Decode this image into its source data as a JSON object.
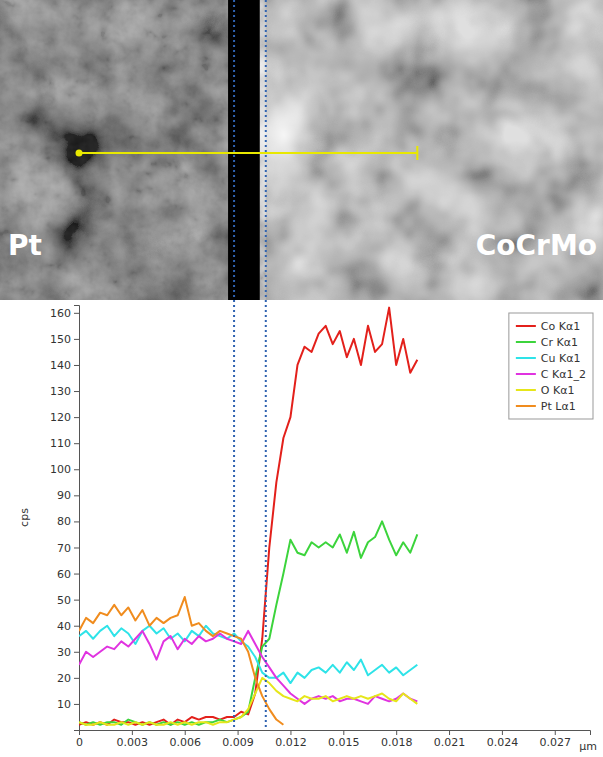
{
  "micrograph": {
    "left_label": "Pt",
    "right_label": "CoCrMo"
  },
  "chart_data": {
    "type": "line",
    "x_label": "µm",
    "y_label": "cps",
    "xlim": [
      0,
      0.029
    ],
    "xticks": [
      0,
      0.003,
      0.006,
      0.009,
      0.012,
      0.015,
      0.018,
      0.021,
      0.024,
      0.027
    ],
    "ylim": [
      0,
      163
    ],
    "yticks": [
      10,
      20,
      30,
      40,
      50,
      60,
      70,
      80,
      90,
      100,
      110,
      120,
      130,
      140,
      150,
      160
    ],
    "grid": false,
    "legend": "top-right",
    "interface_lines": [
      0.0088,
      0.0106
    ],
    "x": [
      0,
      0.0004,
      0.0008,
      0.0012,
      0.0016,
      0.002,
      0.0024,
      0.0028,
      0.0032,
      0.0036,
      0.004,
      0.0044,
      0.0048,
      0.0052,
      0.0056,
      0.006,
      0.0064,
      0.0068,
      0.0072,
      0.0076,
      0.008,
      0.0084,
      0.0088,
      0.0092,
      0.0096,
      0.01,
      0.0104,
      0.0108,
      0.0112,
      0.0116,
      0.012,
      0.0124,
      0.0128,
      0.0132,
      0.0136,
      0.014,
      0.0144,
      0.0148,
      0.0152,
      0.0156,
      0.016,
      0.0164,
      0.0168,
      0.0172,
      0.0176,
      0.018,
      0.0184,
      0.0188,
      0.0192
    ],
    "series": [
      {
        "name": "Co Kα1",
        "color": "#e3201b",
        "values": [
          2,
          3,
          2,
          3,
          2,
          4,
          3,
          3,
          2,
          3,
          2,
          3,
          4,
          2,
          4,
          3,
          5,
          4,
          5,
          5,
          4,
          5,
          5,
          7,
          6,
          14,
          35,
          70,
          95,
          112,
          120,
          140,
          147,
          145,
          152,
          155,
          148,
          153,
          143,
          150,
          140,
          155,
          145,
          148,
          162,
          140,
          150,
          137,
          142
        ]
      },
      {
        "name": "Cr Kα1",
        "color": "#3cd43c",
        "values": [
          3,
          2,
          3,
          2,
          3,
          3,
          2,
          4,
          3,
          2,
          3,
          2,
          3,
          2,
          3,
          2,
          3,
          2,
          3,
          3,
          4,
          3,
          4,
          5,
          7,
          20,
          32,
          35,
          48,
          60,
          73,
          68,
          67,
          72,
          70,
          72,
          70,
          75,
          68,
          76,
          66,
          72,
          74,
          80,
          73,
          67,
          72,
          68,
          75
        ]
      },
      {
        "name": "Cu Kα1",
        "color": "#2ee3e8",
        "values": [
          36,
          38,
          35,
          38,
          40,
          36,
          39,
          37,
          33,
          38,
          40,
          37,
          39,
          35,
          37,
          34,
          38,
          36,
          40,
          37,
          36,
          35,
          37,
          34,
          32,
          28,
          22,
          20,
          20,
          22,
          18,
          22,
          20,
          23,
          24,
          22,
          25,
          22,
          26,
          23,
          27,
          21,
          23,
          25,
          22,
          24,
          21,
          23,
          25
        ]
      },
      {
        "name": "C Kα1_2",
        "color": "#e033e0",
        "values": [
          25,
          30,
          28,
          30,
          32,
          31,
          34,
          32,
          35,
          38,
          33,
          27,
          34,
          36,
          31,
          35,
          33,
          36,
          34,
          35,
          37,
          35,
          34,
          33,
          38,
          33,
          28,
          24,
          20,
          17,
          14,
          12,
          10,
          12,
          13,
          12,
          13,
          11,
          12,
          12,
          11,
          10,
          13,
          12,
          11,
          12,
          14,
          12,
          11
        ]
      },
      {
        "name": "O Kα1",
        "color": "#e6e61a",
        "values": [
          3,
          2,
          2,
          3,
          2,
          2,
          3,
          2,
          3,
          2,
          3,
          2,
          2,
          3,
          2,
          3,
          2,
          3,
          3,
          2,
          3,
          3,
          4,
          5,
          8,
          14,
          20,
          18,
          15,
          13,
          12,
          11,
          13,
          12,
          12,
          13,
          11,
          12,
          13,
          12,
          13,
          12,
          13,
          14,
          12,
          11,
          14,
          12,
          10
        ]
      },
      {
        "name": "Pt Lα1",
        "color": "#f08c1e",
        "values": [
          38,
          43,
          41,
          45,
          44,
          48,
          44,
          47,
          42,
          46,
          40,
          43,
          41,
          43,
          44,
          51,
          40,
          41,
          38,
          36,
          38,
          37,
          36,
          35,
          30,
          20,
          13,
          8,
          4,
          2,
          null,
          null,
          null,
          null,
          null,
          null,
          null,
          null,
          null,
          null,
          null,
          null,
          null,
          null,
          null,
          null,
          null,
          null,
          null
        ]
      }
    ]
  }
}
